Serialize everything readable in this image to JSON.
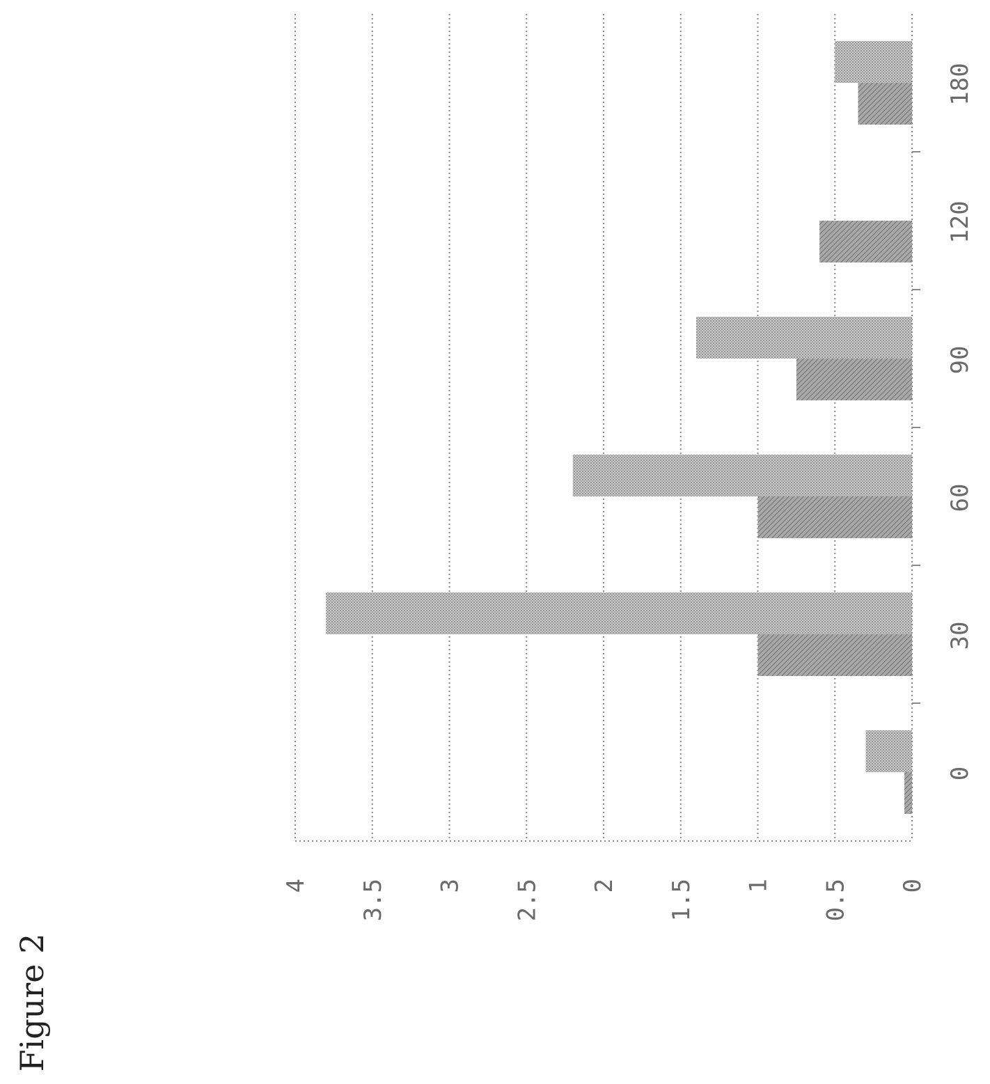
{
  "figure_label": "Figure 2",
  "chart_data": {
    "type": "bar",
    "orientation": "rotated-90-counterclockwise",
    "categories": [
      "0",
      "30",
      "60",
      "90",
      "120",
      "180"
    ],
    "series": [
      {
        "values": [
          0.05,
          1.0,
          1.0,
          0.75,
          0.6,
          0.35
        ]
      },
      {
        "values": [
          0.3,
          3.8,
          2.2,
          1.4,
          null,
          0.5
        ]
      }
    ],
    "y_ticks": [
      "0",
      "0.5",
      "1",
      "1.5",
      "2",
      "2.5",
      "3",
      "3.5",
      "4"
    ],
    "ylim": [
      0,
      4
    ],
    "grid": true,
    "legend": "none",
    "colors": {
      "series_1": "#8c8c8c",
      "series_2": "#b4b4b4",
      "grid": "#8a8a8a",
      "ticks": "#6a6a6a"
    }
  }
}
